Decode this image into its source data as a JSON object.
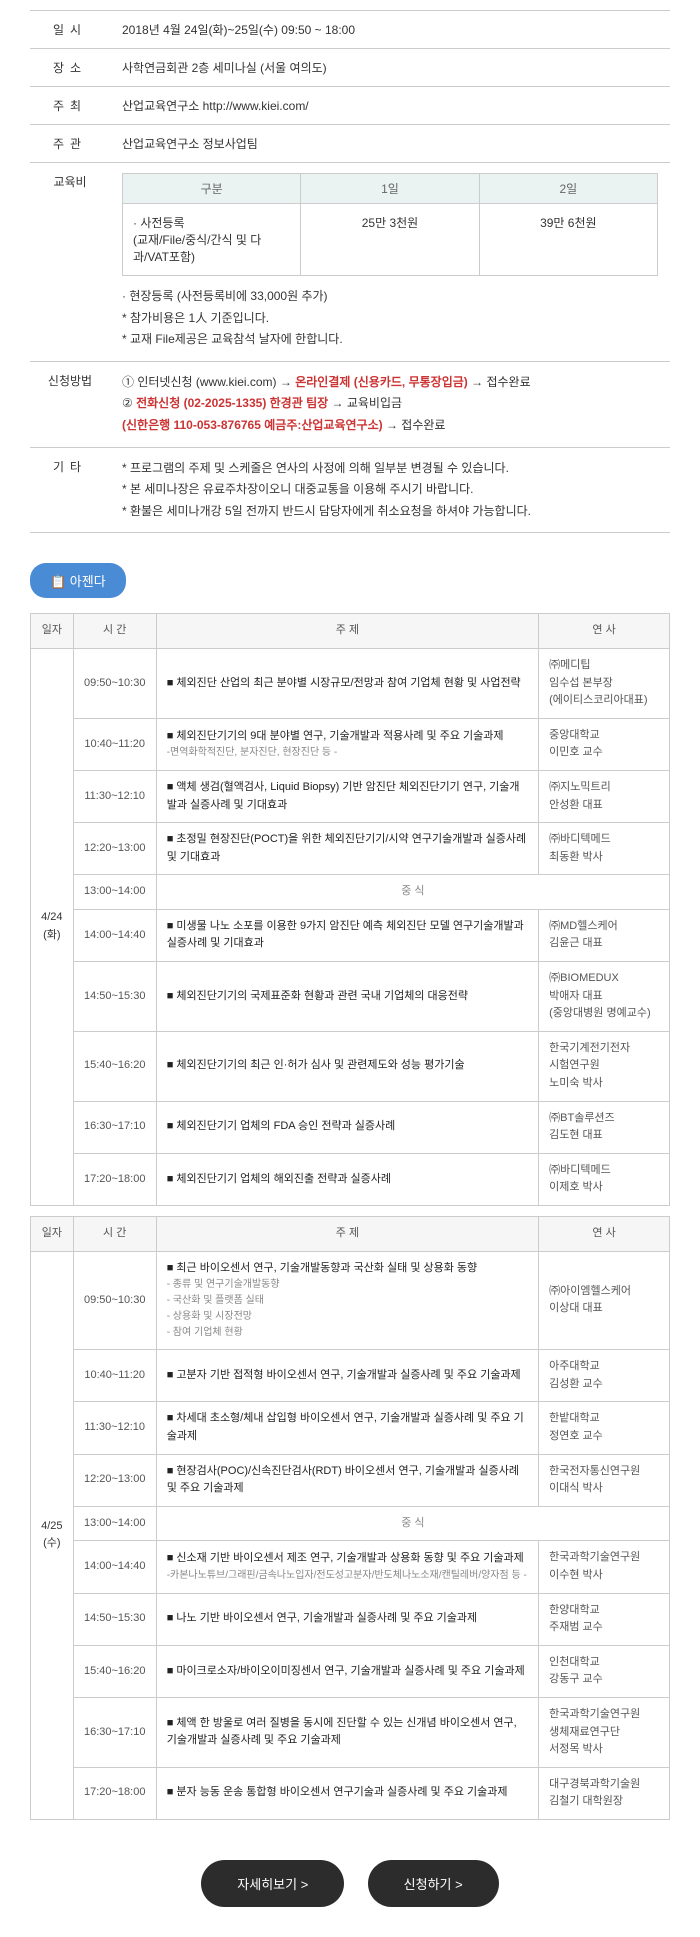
{
  "info": {
    "date_label": "일시",
    "date_value": "2018년 4월 24일(화)~25일(수) 09:50 ~ 18:00",
    "place_label": "장소",
    "place_value": "사학연금회관 2층 세미나실 (서울 여의도)",
    "host_label": "주최",
    "host_value": "산업교육연구소 http://www.kiei.com/",
    "org_label": "주관",
    "org_value": "산업교육연구소 정보사업팀",
    "fee_label": "교육비",
    "fee_sub_headers": [
      "구분",
      "1일",
      "2일"
    ],
    "fee_row_label": "· 사전등록\n(교재/File/중식/간식 및 다과/VAT포함)",
    "fee_day1": "25만 3천원",
    "fee_day2": "39만 6천원",
    "fee_notes": [
      "· 현장등록 (사전등록비에 33,000원 추가)",
      "* 참가비용은 1人 기준입니다.",
      "* 교재 File제공은 교육참석 날자에 한합니다."
    ],
    "apply_label": "신청방법",
    "apply_lines": [
      {
        "pre": "① 인터넷신청 (www.kiei.com) → ",
        "red": "온라인결제 (신용카드, 무통장입금)",
        "post": " → 접수완료"
      },
      {
        "pre": "② ",
        "red": "전화신청 (02-2025-1335) 한경관 팀장",
        "post": " → 교육비입금"
      },
      {
        "pre": "",
        "red": "(신한은행 110-053-876765 예금주:산업교육연구소)",
        "post": " → 접수완료"
      }
    ],
    "etc_label": "기타",
    "etc_notes": [
      "* 프로그램의 주제 및 스케줄은 연사의 사정에 의해 일부분 변경될 수 있습니다.",
      "* 본 세미나장은 유료주차장이오니 대중교통을 이용해 주시기 바랍니다.",
      "* 환불은 세미나개강 5일 전까지 반드시 담당자에게 취소요청을 하셔야 가능합니다."
    ]
  },
  "agenda_label": "📋 아젠다",
  "schedule_headers": {
    "date": "일자",
    "time": "시 간",
    "topic": "주 제",
    "speaker": "연 사"
  },
  "day1": {
    "date": "4/24\n(화)",
    "rows": [
      {
        "time": "09:50~10:30",
        "topic": "■ 체외진단 산업의 최근 분야별 시장규모/전망과 참여 기업체 현황 및 사업전략",
        "sub": "",
        "speaker": "㈜메디팁\n임수섭 본부장\n(에이티스코리아대표)"
      },
      {
        "time": "10:40~11:20",
        "topic": "■ 체외진단기기의 9대 분야별 연구, 기술개발과 적용사례 및 주요 기술과제",
        "sub": "-면역화학적진단, 분자진단, 현장진단 등 -",
        "speaker": "중앙대학교\n이민호 교수"
      },
      {
        "time": "11:30~12:10",
        "topic": "■ 액체 생검(혈액검사, Liquid Biopsy) 기반 암진단 체외진단기기 연구, 기술개발과 실증사례 및 기대효과",
        "sub": "",
        "speaker": "㈜지노믹트리\n안성환 대표"
      },
      {
        "time": "12:20~13:00",
        "topic": "■ 초정밀 현장진단(POCT)을 위한 체외진단기기/시약 연구기술개발과 실증사례 및 기대효과",
        "sub": "",
        "speaker": "㈜바디텍메드\n최동환 박사"
      },
      {
        "time": "13:00~14:00",
        "topic": "중 식",
        "break": true
      },
      {
        "time": "14:00~14:40",
        "topic": "■ 미생물 나노 소포를 이용한 9가지 암진단 예측 체외진단 모델 연구기술개발과 실증사례 및 기대효과",
        "sub": "",
        "speaker": "㈜MD헬스케어\n김윤근 대표"
      },
      {
        "time": "14:50~15:30",
        "topic": "■ 체외진단기기의 국제표준화 현황과 관련 국내 기업체의 대응전략",
        "sub": "",
        "speaker": "㈜BIOMEDUX\n박애자 대표\n(중앙대병원 명예교수)"
      },
      {
        "time": "15:40~16:20",
        "topic": "■ 체외진단기기의 최근 인·허가 심사 및 관련제도와 성능 평가기술",
        "sub": "",
        "speaker": "한국기계전기전자\n시험연구원\n노미숙 박사"
      },
      {
        "time": "16:30~17:10",
        "topic": "■ 체외진단기기 업체의 FDA 승인 전략과 실증사례",
        "sub": "",
        "speaker": "㈜BT솔루션즈\n김도현 대표"
      },
      {
        "time": "17:20~18:00",
        "topic": "■ 체외진단기기 업체의 해외진출 전략과 실증사례",
        "sub": "",
        "speaker": "㈜바디텍메드\n이제호 박사"
      }
    ]
  },
  "day2": {
    "date": "4/25\n(수)",
    "rows": [
      {
        "time": "09:50~10:30",
        "topic": "■ 최근 바이오센서 연구, 기술개발동향과 국산화 실태 및 상용화 동향",
        "sub": "- 종류 및 연구기술개발동향\n- 국산화 및 플랫폼 실태\n- 상용화 및 시장전망\n- 참여 기업체 현황",
        "speaker": "㈜아이엠헬스케어\n이상대 대표"
      },
      {
        "time": "10:40~11:20",
        "topic": "■ 고분자 기반 접적형 바이오센서 연구, 기술개발과 실증사례 및 주요 기술과제",
        "sub": "",
        "speaker": "아주대학교\n김성환 교수"
      },
      {
        "time": "11:30~12:10",
        "topic": "■ 차세대 초소형/체내 삽입형 바이오센서 연구, 기술개발과 실증사례 및 주요 기술과제",
        "sub": "",
        "speaker": "한밭대학교\n정연호 교수"
      },
      {
        "time": "12:20~13:00",
        "topic": "■ 현장검사(POC)/신속진단검사(RDT) 바이오센서 연구, 기술개발과 실증사례 및 주요 기술과제",
        "sub": "",
        "speaker": "한국전자통신연구원\n이대식 박사"
      },
      {
        "time": "13:00~14:00",
        "topic": "중 식",
        "break": true
      },
      {
        "time": "14:00~14:40",
        "topic": "■ 신소재 기반 바이오센서 제조 연구, 기술개발과 상용화 동향 및 주요 기술과제",
        "sub": "-카본나노튜브/그래핀/금속나노입자/전도성고분자/반도체나노소재/캔틸레버/양자점 등 -",
        "speaker": "한국과학기술연구원\n이수현 박사"
      },
      {
        "time": "14:50~15:30",
        "topic": "■ 나노 기반 바이오센서 연구, 기술개발과 실증사례 및 주요 기술과제",
        "sub": "",
        "speaker": "한양대학교\n주재범 교수"
      },
      {
        "time": "15:40~16:20",
        "topic": "■ 마이크로소자/바이오이미징센서 연구, 기술개발과 실증사례 및 주요 기술과제",
        "sub": "",
        "speaker": "인천대학교\n강동구 교수"
      },
      {
        "time": "16:30~17:10",
        "topic": "■ 체액 한 방울로 여러 질병을 동시에 진단할 수 있는 신개념 바이오센서 연구, 기술개발과 실증사례 및 주요 기술과제",
        "sub": "",
        "speaker": "한국과학기술연구원\n생체재료연구단\n서정목 박사"
      },
      {
        "time": "17:20~18:00",
        "topic": "■ 분자 능동 운송 통합형 바이오센서 연구기술과 실증사례 및 주요 기술과제",
        "sub": "",
        "speaker": "대구경북과학기술원\n김철기 대학원장"
      }
    ]
  },
  "buttons": {
    "detail": "자세히보기 >",
    "apply": "신청하기 >"
  }
}
